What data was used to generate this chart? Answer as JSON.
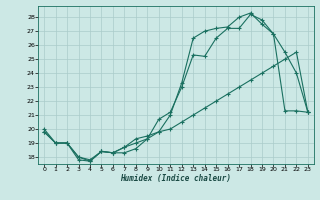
{
  "title": "",
  "xlabel": "Humidex (Indice chaleur)",
  "xlim": [
    -0.5,
    23.5
  ],
  "ylim": [
    17.5,
    28.8
  ],
  "yticks": [
    18,
    19,
    20,
    21,
    22,
    23,
    24,
    25,
    26,
    27,
    28
  ],
  "xticks": [
    0,
    1,
    2,
    3,
    4,
    5,
    6,
    7,
    8,
    9,
    10,
    11,
    12,
    13,
    14,
    15,
    16,
    17,
    18,
    19,
    20,
    21,
    22,
    23
  ],
  "bg_color": "#cce8e5",
  "line_color": "#1a7060",
  "grid_color": "#aaccca",
  "line1_y": [
    20.0,
    19.0,
    19.0,
    18.0,
    17.7,
    18.4,
    18.3,
    18.3,
    18.6,
    19.3,
    20.7,
    21.2,
    23.0,
    25.3,
    25.2,
    26.5,
    27.2,
    27.2,
    28.2,
    27.8,
    26.8,
    25.5,
    24.0,
    21.2
  ],
  "line2_y": [
    19.8,
    19.0,
    19.0,
    17.8,
    17.7,
    18.4,
    18.3,
    18.7,
    19.3,
    19.5,
    19.8,
    21.0,
    23.3,
    26.5,
    27.0,
    27.2,
    27.3,
    28.0,
    28.3,
    27.5,
    26.8,
    21.3,
    21.3,
    21.2
  ],
  "line3_y": [
    19.8,
    19.0,
    19.0,
    18.0,
    17.8,
    18.4,
    18.3,
    18.7,
    19.0,
    19.3,
    19.8,
    20.0,
    20.5,
    21.0,
    21.5,
    22.0,
    22.5,
    23.0,
    23.5,
    24.0,
    24.5,
    25.0,
    25.5,
    21.2
  ]
}
